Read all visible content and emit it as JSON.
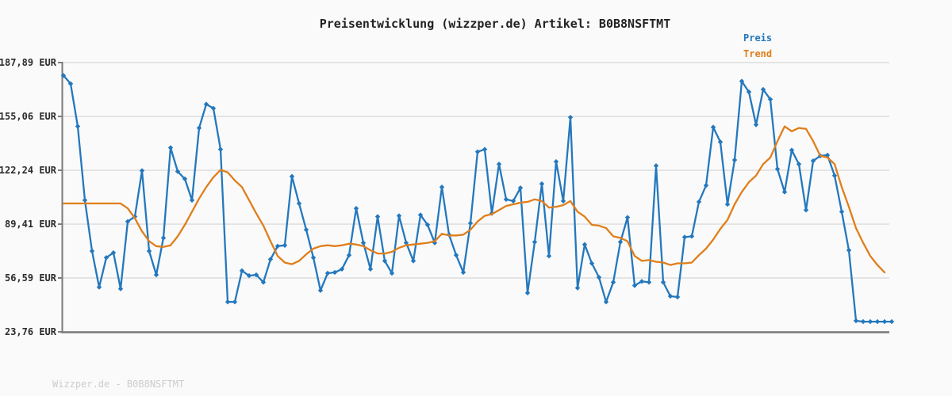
{
  "title": "Preisentwicklung (wizzper.de) Artikel: B0B8NSFTMT",
  "footer": "Wizzper.de - B0B8NSFTMT",
  "legend": {
    "preis": "Preis",
    "trend": "Trend"
  },
  "colors": {
    "preis": "#2478bd",
    "trend": "#e07e1a",
    "grid": "#e4e4e4",
    "axis": "#7a7a7a",
    "tick": "#555555",
    "tick_text": "#2b2b2b",
    "footer_text": "#cccccc",
    "background": "#fafafa"
  },
  "chart_data": {
    "type": "line",
    "title": "Preisentwicklung (wizzper.de) Artikel: B0B8NSFTMT",
    "unit": "EUR",
    "ylim": [
      23.76,
      187.89
    ],
    "grid": true,
    "legend_position": "top-right",
    "x_axis": "time (unlabeled)",
    "y_ticks": [
      {
        "value": 187.89,
        "label": "187,89 EUR"
      },
      {
        "value": 155.06,
        "label": "155,06 EUR"
      },
      {
        "value": 122.24,
        "label": "122,24 EUR"
      },
      {
        "value": 89.41,
        "label": "89,41 EUR"
      },
      {
        "value": 56.59,
        "label": "56,59 EUR"
      },
      {
        "value": 23.76,
        "label": "23,76 EUR"
      }
    ],
    "series": [
      {
        "name": "Preis",
        "color_key": "preis",
        "markers": true,
        "values": [
          180,
          175,
          149,
          104,
          73,
          51,
          69,
          72,
          50,
          91,
          94,
          122,
          73,
          58.5,
          81,
          136,
          121.5,
          117,
          104,
          148,
          162.5,
          160,
          135,
          42,
          42,
          61,
          58,
          58.5,
          54,
          68,
          76,
          76.5,
          118.5,
          102,
          86,
          69,
          49,
          59.5,
          60,
          62,
          70.5,
          99,
          78,
          62,
          94,
          67,
          59.5,
          94.5,
          78,
          67,
          95,
          89,
          78,
          112,
          83,
          70.5,
          60,
          90,
          133.5,
          135,
          96,
          126,
          104.5,
          103.5,
          111.5,
          47.5,
          78.5,
          114,
          70,
          127.5,
          103.5,
          154.5,
          50.5,
          77,
          65.5,
          57,
          42,
          54,
          78.5,
          93.5,
          52,
          54.5,
          54,
          125,
          54,
          45.5,
          45,
          81.5,
          82,
          103,
          113,
          148.5,
          139.5,
          101.5,
          128.5,
          176.5,
          170,
          150,
          171.5,
          165.5,
          123,
          109,
          134.5,
          126,
          98,
          128,
          131,
          131.5,
          119,
          97,
          73.5,
          30.5,
          30,
          30,
          30,
          30,
          30
        ]
      },
      {
        "name": "Trend",
        "color_key": "trend",
        "markers": false,
        "values": [
          102,
          102,
          102,
          102,
          102,
          102,
          102,
          102,
          102,
          99,
          93,
          85,
          79,
          76,
          75.5,
          76.5,
          82,
          89,
          97,
          105,
          112,
          118,
          122.5,
          121,
          116,
          112,
          104,
          96,
          88.5,
          79,
          70,
          66,
          65,
          67,
          71,
          74.5,
          76,
          76.5,
          76,
          76.5,
          77.5,
          77,
          76,
          73.5,
          71.5,
          71.5,
          72.5,
          75,
          76.5,
          77,
          77.5,
          78,
          79,
          83.5,
          82.5,
          82.5,
          83,
          86,
          91,
          94.5,
          95.5,
          98,
          100.5,
          101.5,
          102.5,
          103,
          104.5,
          103.5,
          99.5,
          100,
          101,
          103.5,
          97,
          94,
          89,
          88.5,
          87,
          82,
          81,
          79,
          70,
          67,
          67.5,
          66.5,
          66,
          64.5,
          65.5,
          65.5,
          66,
          70.5,
          74.5,
          80,
          86.5,
          92,
          101.5,
          109,
          115,
          119,
          126,
          130,
          140,
          149,
          146,
          148,
          147.5,
          140,
          131,
          130,
          126,
          112,
          100,
          87,
          78,
          70,
          64.5,
          60,
          null
        ]
      }
    ]
  }
}
